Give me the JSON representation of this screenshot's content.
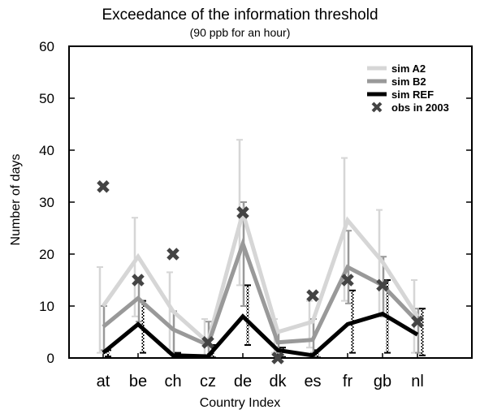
{
  "chart_data": {
    "type": "line",
    "title": "Exceedance of the information threshold",
    "subtitle": "(90 ppb for an hour)",
    "xlabel": "Country Index",
    "ylabel": "Number of days",
    "categories": [
      "at",
      "be",
      "ch",
      "cz",
      "de",
      "dk",
      "es",
      "fr",
      "gb",
      "nl"
    ],
    "ylim": [
      0,
      60
    ],
    "yticks": [
      0,
      10,
      20,
      30,
      40,
      50,
      60
    ],
    "legend_position": "top-right",
    "series": [
      {
        "name": "sim A2",
        "color": "#d6d6d6",
        "style": "solid",
        "values": [
          10,
          19.5,
          9,
          3,
          28,
          5,
          7,
          26.5,
          18.5,
          8
        ],
        "error_high": [
          17.5,
          27,
          16.5,
          7.5,
          42,
          7.5,
          11,
          38.5,
          28.5,
          15
        ],
        "error_low": [
          1,
          8,
          1,
          0.5,
          14,
          1,
          2,
          11,
          8,
          1
        ]
      },
      {
        "name": "sim B2",
        "color": "#999999",
        "style": "solid",
        "values": [
          6,
          11.5,
          5.5,
          2.5,
          22,
          3,
          3.5,
          17.5,
          14,
          7
        ],
        "error_high": [
          10,
          15,
          9,
          7,
          30,
          5,
          7.5,
          24.5,
          19.5,
          9.5
        ],
        "error_low": [
          1.5,
          7,
          1,
          0.5,
          10,
          1,
          1,
          10.5,
          8,
          1
        ]
      },
      {
        "name": "sim REF",
        "color": "#000000",
        "style": "solid",
        "values": [
          1,
          6.5,
          0.5,
          0.3,
          8,
          1.5,
          0.5,
          6.5,
          8.5,
          4.5
        ],
        "error_high": [
          1.5,
          11,
          1,
          2.5,
          14,
          2,
          1.5,
          13,
          15,
          9.5
        ],
        "error_low": [
          0.3,
          1,
          0.1,
          0.1,
          2.5,
          0.2,
          0.1,
          1,
          1,
          0.5
        ]
      },
      {
        "name": "obs in 2003",
        "color": "#444444",
        "style": "marker-x",
        "values": [
          33,
          15,
          20,
          3,
          28,
          0,
          12,
          15,
          14,
          7
        ]
      }
    ]
  }
}
